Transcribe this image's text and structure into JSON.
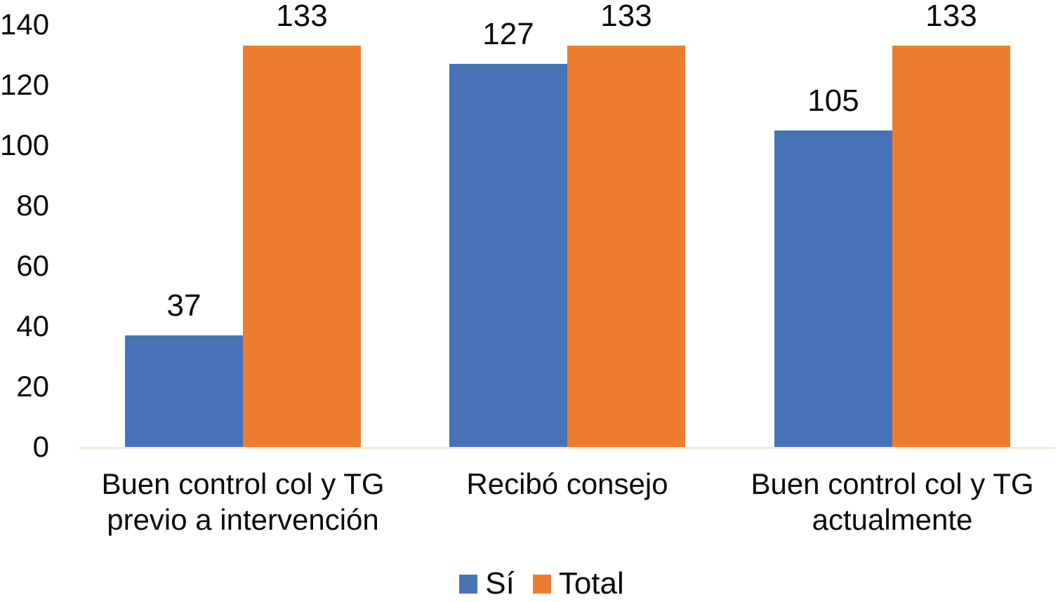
{
  "chart_data": {
    "type": "bar",
    "title": "",
    "xlabel": "",
    "ylabel": "",
    "categories": [
      "Buen control col y TG previo a intervención",
      "Recibó consejo",
      "Buen control col y TG actualmente"
    ],
    "category_lines": [
      [
        "Buen control col y TG",
        "previo a intervención"
      ],
      [
        "Recibó consejo"
      ],
      [
        "Buen control col y TG",
        "actualmente"
      ]
    ],
    "series": [
      {
        "name": "Sí",
        "color": "#4673B8",
        "values": [
          37,
          127,
          105
        ]
      },
      {
        "name": "Total",
        "color": "#EF7D30",
        "values": [
          133,
          133,
          133
        ]
      }
    ],
    "yticks": [
      0,
      20,
      40,
      60,
      80,
      100,
      120,
      140
    ],
    "ylim": [
      0,
      140
    ],
    "grid": false,
    "data_labels": true,
    "legend_position": "bottom",
    "colors": {
      "si_blue": "#4673B8",
      "total_orange": "#EF7D30",
      "axis_line": "#F7E0CC",
      "text": "#0A0A0A"
    }
  }
}
